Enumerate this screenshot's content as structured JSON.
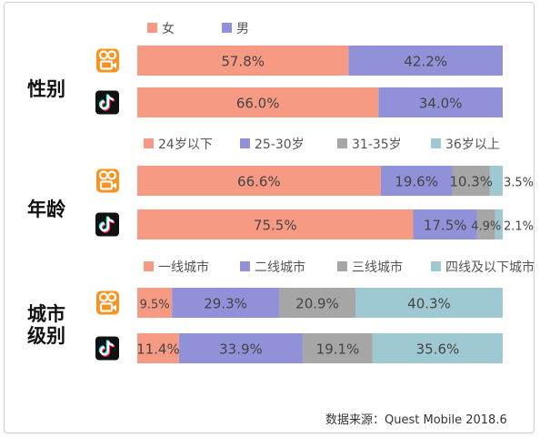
{
  "chart_data": {
    "type": "bar",
    "orientation": "horizontal",
    "stacked": true,
    "percent": true,
    "colors": {
      "female": "#F79A83",
      "male": "#9191D9",
      "age_24_under": "#F79A83",
      "age_25_30": "#9191D9",
      "age_31_35": "#A6A6A6",
      "age_36_over": "#9FC9D2",
      "tier1": "#F79A83",
      "tier2": "#9191D9",
      "tier3": "#A6A6A6",
      "tier4": "#9FC9D2",
      "kuaishou_icon": "#F7931E",
      "douyin_icon": "#111111"
    },
    "platforms": [
      {
        "icon": "kuaishou-icon"
      },
      {
        "icon": "douyin-icon"
      }
    ],
    "groups": [
      {
        "label": "性别",
        "legend": [
          "女",
          "男"
        ],
        "series_keys": [
          "female",
          "male"
        ],
        "rows": [
          {
            "platform": "kuaishou",
            "values": [
              57.8,
              42.2
            ],
            "labels": [
              "57.8%",
              "42.2%"
            ]
          },
          {
            "platform": "douyin",
            "values": [
              66.0,
              34.0
            ],
            "labels": [
              "66.0%",
              "34.0%"
            ]
          }
        ]
      },
      {
        "label": "年龄",
        "legend": [
          "24岁以下",
          "25-30岁",
          "31-35岁",
          "36岁以上"
        ],
        "series_keys": [
          "age_24_under",
          "age_25_30",
          "age_31_35",
          "age_36_over"
        ],
        "rows": [
          {
            "platform": "kuaishou",
            "values": [
              66.6,
              19.6,
              10.3,
              3.5
            ],
            "labels": [
              "66.6%",
              "19.6%",
              "10.3%",
              "3.5%"
            ]
          },
          {
            "platform": "douyin",
            "values": [
              75.5,
              17.5,
              4.9,
              2.1
            ],
            "labels": [
              "75.5%",
              "17.5%",
              "4.9%",
              "2.1%"
            ]
          }
        ]
      },
      {
        "label": "城市级别",
        "label_lines": [
          "城市",
          "级别"
        ],
        "legend": [
          "一线城市",
          "二线城市",
          "三线城市",
          "四线及以下城市"
        ],
        "series_keys": [
          "tier1",
          "tier2",
          "tier3",
          "tier4"
        ],
        "rows": [
          {
            "platform": "kuaishou",
            "values": [
              9.5,
              29.3,
              20.9,
              40.3
            ],
            "labels": [
              "9.5%",
              "29.3%",
              "20.9%",
              "40.3%"
            ]
          },
          {
            "platform": "douyin",
            "values": [
              11.4,
              33.9,
              19.1,
              35.6
            ],
            "labels": [
              "11.4%",
              "33.9%",
              "19.1%",
              "35.6%"
            ]
          }
        ]
      }
    ]
  },
  "source": {
    "text": "数据来源：Quest Mobile 2018.6"
  }
}
